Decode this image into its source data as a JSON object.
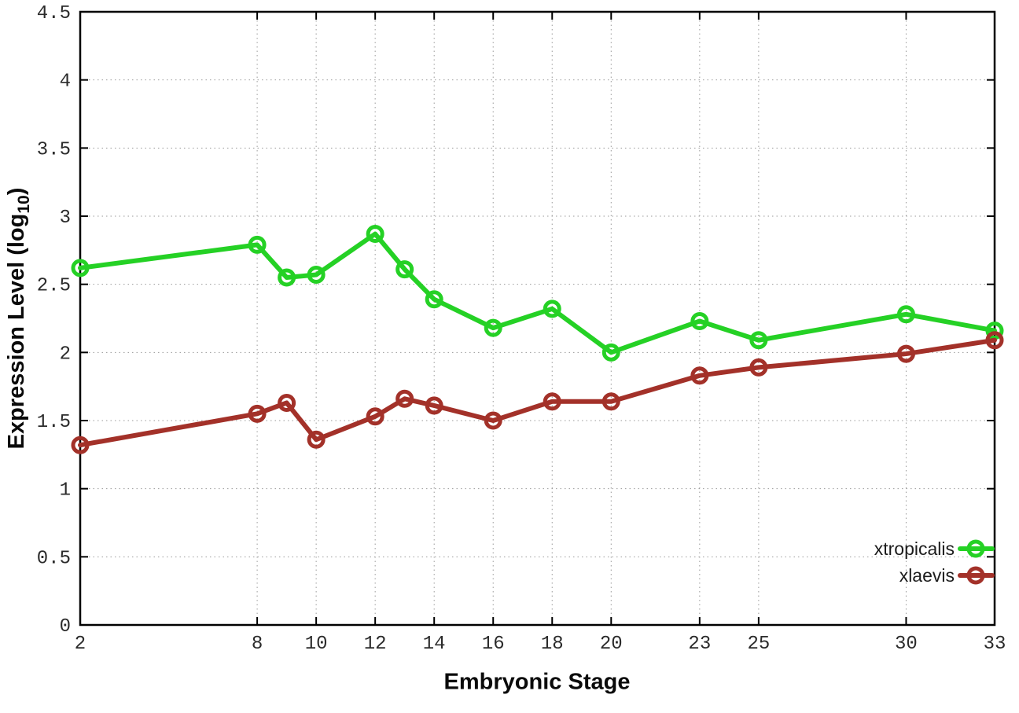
{
  "chart_data": {
    "type": "line",
    "title": "",
    "xlabel": "Embryonic Stage",
    "ylabel": "Expression Level (log10)",
    "ylabel_parts": {
      "prefix": "Expression Level (log",
      "sub": "10",
      "suffix": ")"
    },
    "x": [
      2,
      8,
      9,
      10,
      12,
      13,
      14,
      16,
      18,
      20,
      23,
      25,
      30,
      33
    ],
    "xticks": [
      2,
      8,
      10,
      12,
      14,
      16,
      18,
      20,
      23,
      25,
      30,
      33
    ],
    "yticks": [
      0,
      0.5,
      1,
      1.5,
      2,
      2.5,
      3,
      3.5,
      4,
      4.5
    ],
    "xlim": [
      2,
      33
    ],
    "ylim": [
      0,
      4.5
    ],
    "grid": true,
    "legend_position": "inside-bottom-right",
    "series": [
      {
        "name": "xtropicalis",
        "color": "#25d125",
        "values": [
          2.62,
          2.79,
          2.55,
          2.57,
          2.87,
          2.61,
          2.39,
          2.18,
          2.32,
          2.0,
          2.23,
          2.09,
          2.28,
          2.16
        ]
      },
      {
        "name": "xlaevis",
        "color": "#a33129",
        "values": [
          1.32,
          1.55,
          1.63,
          1.36,
          1.53,
          1.66,
          1.61,
          1.5,
          1.64,
          1.64,
          1.83,
          1.89,
          1.99,
          2.09
        ]
      }
    ],
    "marker": "open-circle"
  }
}
